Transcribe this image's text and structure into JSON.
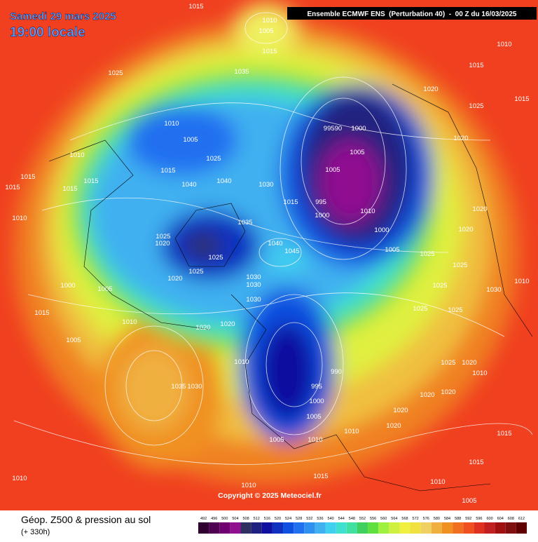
{
  "header": {
    "date": "Samedi 29 mars 2025",
    "time": "19:00 locale",
    "run": "Ensemble ECMWF ENS  (Perturbation 40)  -  00 Z du 16/03/2025"
  },
  "copyright": "Copyright © 2025 Meteociel.fr",
  "footer": {
    "title": "Géop. Z500 & pression au sol",
    "subtitle": "(+ 330h)"
  },
  "legend": {
    "ticks": [
      492,
      496,
      500,
      504,
      508,
      512,
      516,
      520,
      524,
      528,
      532,
      536,
      540,
      544,
      548,
      552,
      556,
      560,
      564,
      568,
      572,
      576,
      580,
      584,
      588,
      592,
      596,
      600,
      604,
      608,
      612
    ],
    "colors": [
      "#300030",
      "#500050",
      "#700070",
      "#901090",
      "#303060",
      "#202080",
      "#1010a0",
      "#1030c0",
      "#1050e0",
      "#2070f0",
      "#3090f0",
      "#40b0f0",
      "#40d0f0",
      "#40e0d0",
      "#40e0a0",
      "#40d060",
      "#60e040",
      "#a0f040",
      "#d0f040",
      "#f0f040",
      "#f0e040",
      "#f0d060",
      "#f0b040",
      "#f09020",
      "#f07020",
      "#f05020",
      "#e03020",
      "#c02020",
      "#a01010",
      "#801010",
      "#600000"
    ]
  },
  "isobar_labels": [
    "1015",
    "1010",
    "1005",
    "1015",
    "1025",
    "1035",
    "1010",
    "1015",
    "1020",
    "1025",
    "1015",
    "1010",
    "1005",
    "1025",
    "1015",
    "1040",
    "1040",
    "1030",
    "99590",
    "1000",
    "1005",
    "1005",
    "995",
    "1000",
    "1015",
    "1010",
    "1000",
    "1005",
    "1020",
    "1020",
    "1020",
    "1025",
    "1035",
    "1025",
    "1020",
    "1025",
    "1040",
    "1045",
    "1025",
    "1020",
    "1030",
    "1030",
    "1030",
    "1005",
    "1000",
    "1010",
    "1015",
    "1015",
    "1015",
    "1010",
    "1015",
    "1015",
    "1005",
    "1010",
    "1020",
    "1020",
    "1010",
    "990",
    "995",
    "1000",
    "1005",
    "1005",
    "1035",
    "1030",
    "1020",
    "1020",
    "1010",
    "1010",
    "1020",
    "1020",
    "1025",
    "1020",
    "1010",
    "1015",
    "1010",
    "1015",
    "1010",
    "1010",
    "1005",
    "1015",
    "1010",
    "1025",
    "1025",
    "1025",
    "1025",
    "1030"
  ]
}
